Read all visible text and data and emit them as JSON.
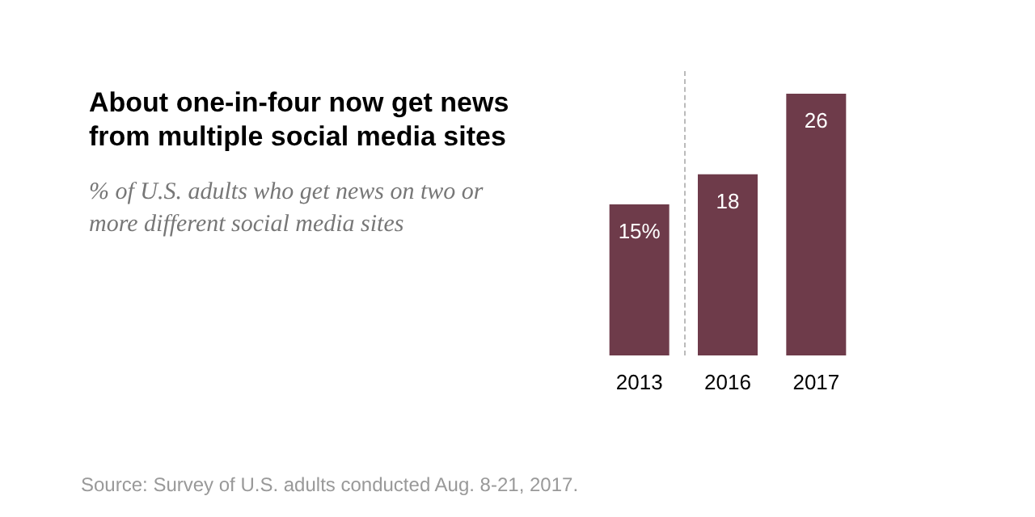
{
  "chart_data": {
    "type": "bar",
    "title": "About one-in-four now get news\nfrom multiple social media sites",
    "subtitle": "% of U.S. adults who get news on two or more different social media sites",
    "categories": [
      "2013",
      "2016",
      "2017"
    ],
    "values": [
      15,
      18,
      26
    ],
    "color": "#6e3b4a",
    "value_labels": [
      "15%",
      "18",
      "26"
    ],
    "annotations": [
      "Source: Survey of U.S. adults conducted Aug. 8-21, 2017."
    ],
    "tick_labels": "x"
  }
}
